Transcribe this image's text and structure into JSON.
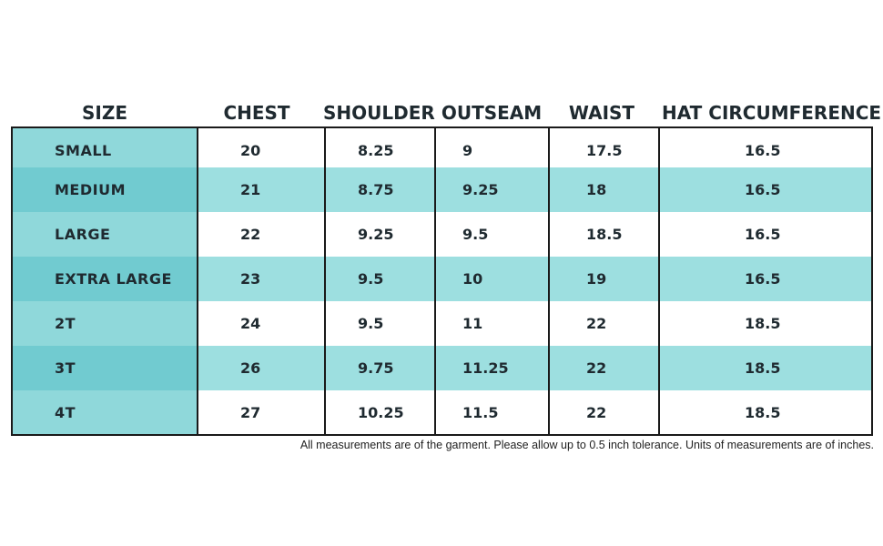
{
  "headers": {
    "size": "SIZE",
    "chest": "CHEST",
    "shoulder": "SHOULDER",
    "outseam": "OUTSEAM",
    "waist": "WAIST",
    "hat": "HAT CIRCUMFERENCE"
  },
  "rows": [
    {
      "size": "SMALL",
      "chest": "20",
      "shoulder": "8.25",
      "outseam": "9",
      "waist": "17.5",
      "hat": "16.5"
    },
    {
      "size": "MEDIUM",
      "chest": "21",
      "shoulder": "8.75",
      "outseam": "9.25",
      "waist": "18",
      "hat": "16.5"
    },
    {
      "size": "LARGE",
      "chest": "22",
      "shoulder": "9.25",
      "outseam": "9.5",
      "waist": "18.5",
      "hat": "16.5"
    },
    {
      "size": "EXTRA LARGE",
      "chest": "23",
      "shoulder": "9.5",
      "outseam": "10",
      "waist": "19",
      "hat": "16.5"
    },
    {
      "size": "2T",
      "chest": "24",
      "shoulder": "9.5",
      "outseam": "11",
      "waist": "22",
      "hat": "18.5"
    },
    {
      "size": "3T",
      "chest": "26",
      "shoulder": "9.75",
      "outseam": "11.25",
      "waist": "22",
      "hat": "18.5"
    },
    {
      "size": "4T",
      "chest": "27",
      "shoulder": "10.25",
      "outseam": "11.5",
      "waist": "22",
      "hat": "18.5"
    }
  ],
  "footnote": "All measurements are of the garment.  Please allow up to 0.5 inch tolerance.  Units of measurements are of inches.",
  "colors": {
    "size_column": "#8fd8da",
    "size_column_alt": "#71cbd0",
    "row_alt": "#9ddfe0",
    "border": "#1a1a1a",
    "text": "#1f2a30"
  }
}
